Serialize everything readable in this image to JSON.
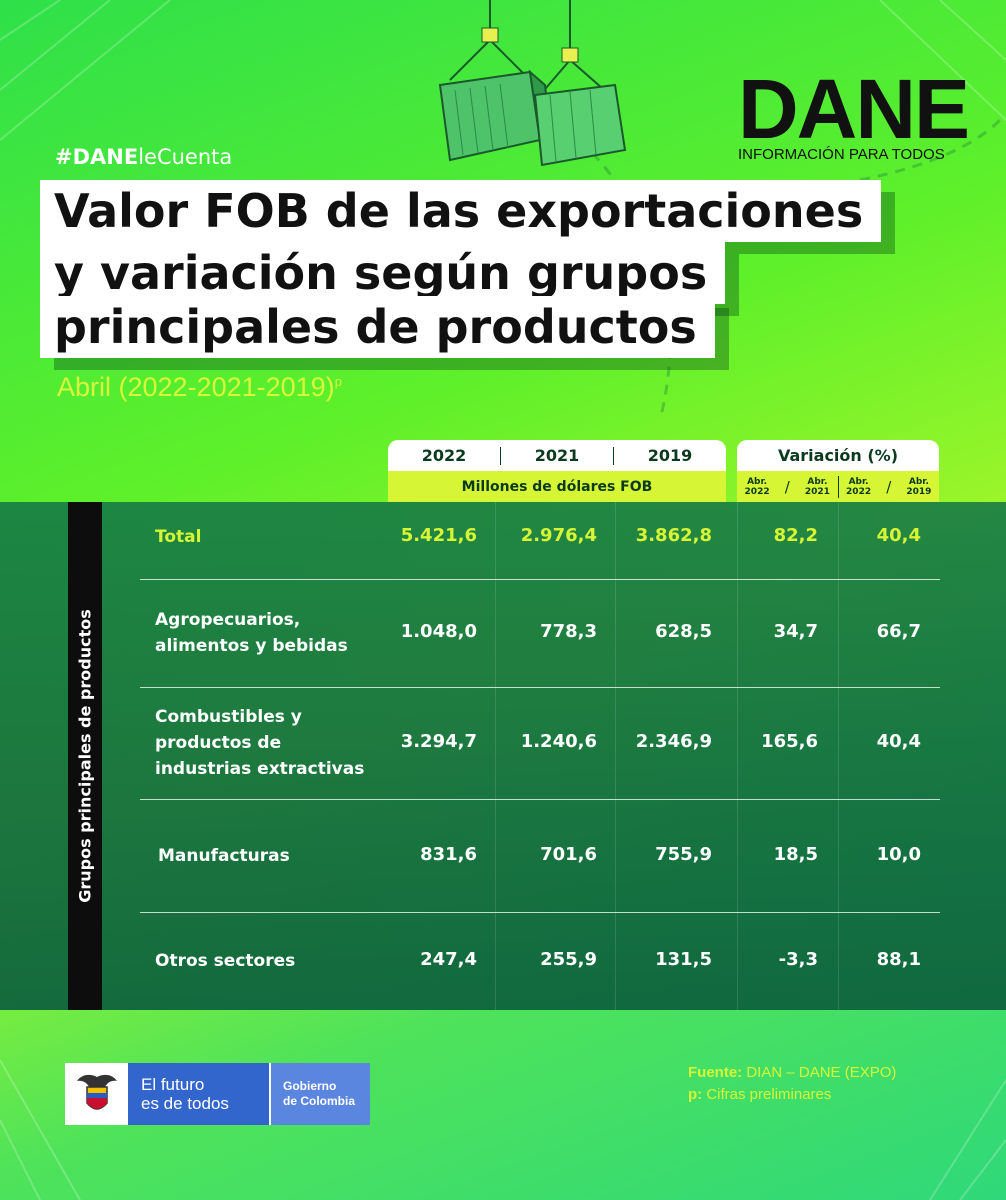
{
  "hashtag": {
    "bold": "#DANE",
    "light": "leCuenta"
  },
  "title": {
    "line1": "Valor FOB de las exportaciones",
    "line2": "y variación según grupos",
    "line3": "principales de productos"
  },
  "subtitle": {
    "text": "Abril (2022-2021-2019)",
    "sup": "p"
  },
  "logo": {
    "word": "DANE",
    "tagline": "INFORMACIÓN PARA TODOS"
  },
  "table": {
    "year_headers": [
      "2022",
      "2021",
      "2019"
    ],
    "variation_header": "Variación (%)",
    "fob_subheader": "Millones de dólares FOB",
    "variation_sub": [
      {
        "a": "Abr.",
        "a_year": "2022",
        "b": "Abr.",
        "b_year": "2021"
      },
      {
        "a": "Abr.",
        "a_year": "2022",
        "b": "Abr.",
        "b_year": "2019"
      }
    ],
    "side_label": "Grupos principales de productos",
    "rows": [
      {
        "name": [
          "Total"
        ],
        "v2022": "5.421,6",
        "v2021": "2.976,4",
        "v2019": "3.862,8",
        "var21": "82,2",
        "var19": "40,4"
      },
      {
        "name": [
          "Agropecuarios,",
          "alimentos y bebidas"
        ],
        "v2022": "1.048,0",
        "v2021": "778,3",
        "v2019": "628,5",
        "var21": "34,7",
        "var19": "66,7"
      },
      {
        "name": [
          "Combustibles y",
          "productos de",
          "industrias extractivas"
        ],
        "v2022": "3.294,7",
        "v2021": "1.240,6",
        "v2019": "2.346,9",
        "var21": "165,6",
        "var19": "40,4"
      },
      {
        "name": [
          "Manufacturas"
        ],
        "v2022": "831,6",
        "v2021": "701,6",
        "v2019": "755,9",
        "var21": "18,5",
        "var19": "10,0"
      },
      {
        "name": [
          "Otros sectores"
        ],
        "v2022": "247,4",
        "v2021": "255,9",
        "v2019": "131,5",
        "var21": "-3,3",
        "var19": "88,1"
      }
    ]
  },
  "gov": {
    "line1": "El futuro",
    "line2": "es de todos",
    "col1": "Gobierno",
    "col2": "de Colombia"
  },
  "source": {
    "label1": "Fuente:",
    "text1": "DIAN – DANE (EXPO)",
    "label2": "p:",
    "text2": "Cifras preliminares"
  },
  "colors": {
    "accent_lime": "#d6f535",
    "panel_green": "#0f6b43",
    "gov_blue": "#3366cc"
  },
  "icons": [
    "shipping-container-icon",
    "colombia-coat-of-arms-icon"
  ]
}
